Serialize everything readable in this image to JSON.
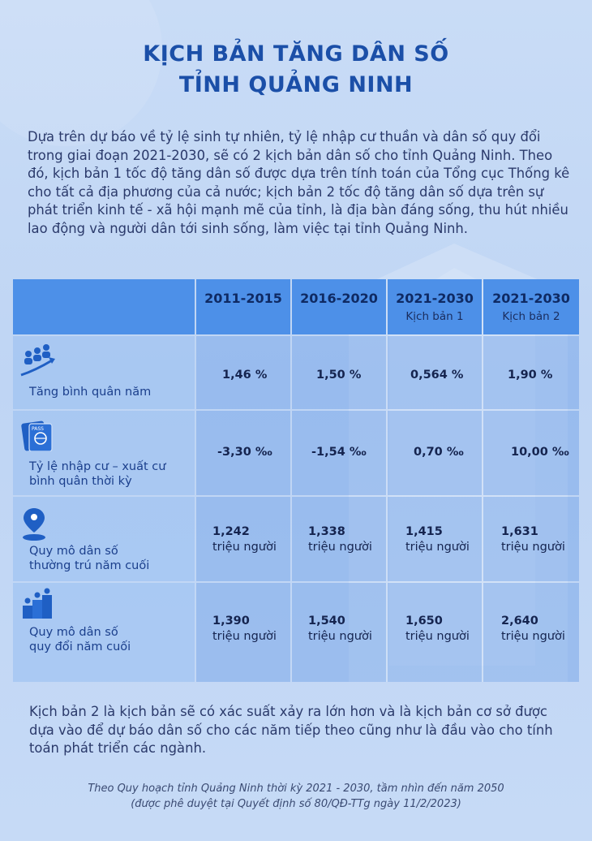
{
  "title": {
    "line1": "KỊCH BẢN TĂNG DÂN SỐ",
    "line2": "TỈNH QUẢNG NINH"
  },
  "intro": "Dựa trên dự báo về tỷ lệ sinh tự nhiên, tỷ lệ nhập cư thuần và dân số quy đổi trong giai đoạn 2021-2030, sẽ có 2 kịch bản dân số cho tỉnh Quảng Ninh. Theo đó, kịch bản 1 tốc độ tăng dân số được dựa trên tính toán của Tổng cục Thống kê cho tất cả địa phương của cả nước; kịch bản 2 tốc độ tăng dân số dựa trên sự phát triển kinh tế - xã hội mạnh mẽ của tỉnh, là địa bàn đáng sống, thu hút nhiều lao động và người dân tới sinh sống, làm việc tại tỉnh Quảng Ninh.",
  "table": {
    "headers": [
      {
        "period": "2011-2015",
        "sub": ""
      },
      {
        "period": "2016-2020",
        "sub": ""
      },
      {
        "period": "2021-2030",
        "sub": "Kịch bản 1"
      },
      {
        "period": "2021-2030",
        "sub": "Kịch bản 2"
      }
    ],
    "rows": [
      {
        "icon": "people-growth-icon",
        "label1": "Tăng bình quân năm",
        "label2": "",
        "values": [
          "1,46 %",
          "1,50 %",
          "0,564 %",
          "1,90 %"
        ]
      },
      {
        "icon": "passport-icon",
        "label1": "Tỷ lệ nhập cư – xuất cư",
        "label2": "bình quân thời kỳ",
        "values": [
          "-3,30 ‰",
          "-1,54 ‰",
          "0,70 ‰",
          "10,00 ‰"
        ]
      },
      {
        "icon": "location-pin-icon",
        "label1": "Quy mô dân số",
        "label2": "thường trú năm cuối",
        "values": [
          "1,242",
          "1,338",
          "1,415",
          "1,631"
        ],
        "unit": "triệu người"
      },
      {
        "icon": "people-podium-icon",
        "label1": "Quy mô dân số",
        "label2": "quy đổi năm cuối",
        "values": [
          "1,390",
          "1,540",
          "1,650",
          "2,640"
        ],
        "unit": "triệu người"
      }
    ]
  },
  "outro": "Kịch bản 2 là kịch bản sẽ có xác suất xảy ra lớn hơn và là kịch bản cơ sở được dựa vào để dự báo dân số cho các năm tiếp theo cũng như là đầu vào cho tính toán phát triển các ngành.",
  "source": {
    "line1": "Theo Quy hoạch tỉnh Quảng Ninh thời kỳ 2021 - 2030, tầm nhìn đến năm 2050",
    "line2": "(được phê duyệt tại Quyết định số 80/QĐ-TTg ngày 11/2/2023)"
  },
  "colors": {
    "title": "#1b4fa8",
    "header_bg": "#4d90e8",
    "icon": "#1f5fc4"
  }
}
